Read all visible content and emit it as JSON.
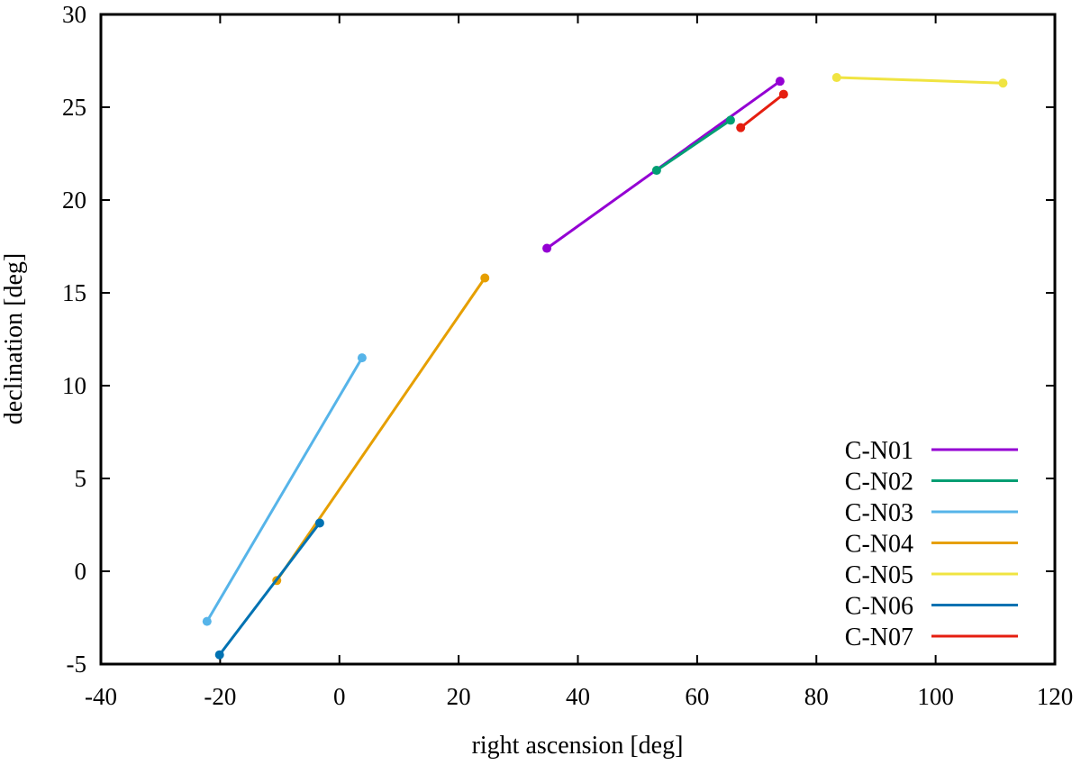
{
  "chart_data": {
    "type": "line",
    "title": "",
    "xlabel": "right ascension [deg]",
    "ylabel": "declination [deg]",
    "xlim": [
      -40,
      120
    ],
    "ylim": [
      -5,
      30
    ],
    "xticks": [
      -40,
      -20,
      0,
      20,
      40,
      60,
      80,
      100,
      120
    ],
    "yticks": [
      -5,
      0,
      5,
      10,
      15,
      20,
      25,
      30
    ],
    "xtick_labels": [
      "-40",
      "-20",
      "0",
      "20",
      "40",
      "60",
      "80",
      "100",
      "120"
    ],
    "ytick_labels": [
      "-5",
      "0",
      "5",
      "10",
      "15",
      "20",
      "25",
      "30"
    ],
    "grid": false,
    "legend_position": "bottom-right",
    "series": [
      {
        "name": "C-N01",
        "color": "#9400d3",
        "points": [
          [
            34.8,
            17.4
          ],
          [
            73.9,
            26.4
          ]
        ]
      },
      {
        "name": "C-N02",
        "color": "#009e73",
        "points": [
          [
            53.2,
            21.6
          ],
          [
            65.6,
            24.3
          ]
        ]
      },
      {
        "name": "C-N03",
        "color": "#56b4e9",
        "points": [
          [
            -22.2,
            -2.7
          ],
          [
            3.8,
            11.5
          ]
        ]
      },
      {
        "name": "C-N04",
        "color": "#e69f00",
        "points": [
          [
            -10.5,
            -0.5
          ],
          [
            24.4,
            15.8
          ]
        ]
      },
      {
        "name": "C-N05",
        "color": "#f0e442",
        "points": [
          [
            83.4,
            26.6
          ],
          [
            111.3,
            26.3
          ]
        ]
      },
      {
        "name": "C-N06",
        "color": "#0072b2",
        "points": [
          [
            -20.1,
            -4.5
          ],
          [
            -3.3,
            2.6
          ]
        ]
      },
      {
        "name": "C-N07",
        "color": "#e51e10",
        "points": [
          [
            67.3,
            23.9
          ],
          [
            74.5,
            25.7
          ]
        ]
      }
    ]
  }
}
